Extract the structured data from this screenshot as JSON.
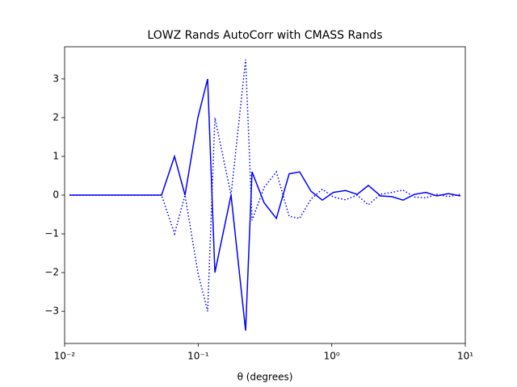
{
  "chart_data": {
    "type": "line",
    "title": "LOWZ Rands AutoCorr with CMASS Rands",
    "xlabel": "θ (degrees)",
    "xscale": "log",
    "xlim": [
      0.01,
      10
    ],
    "ylim": [
      -3.83,
      3.83
    ],
    "xticks": [
      {
        "value": 0.01,
        "label": "10⁻²"
      },
      {
        "value": 0.1,
        "label": "10⁻¹"
      },
      {
        "value": 1,
        "label": "10⁰"
      },
      {
        "value": 10,
        "label": "10¹"
      }
    ],
    "yticks": [
      {
        "value": -3,
        "label": "−3"
      },
      {
        "value": -2,
        "label": "−2"
      },
      {
        "value": -1,
        "label": "−1"
      },
      0,
      1,
      2,
      3
    ],
    "x": [
      0.01087,
      0.0132,
      0.0161,
      0.0195,
      0.024,
      0.0292,
      0.0355,
      0.0438,
      0.0532,
      0.0665,
      0.0797,
      0.0995,
      0.1177,
      0.1334,
      0.1762,
      0.2265,
      0.2531,
      0.312,
      0.385,
      0.48,
      0.575,
      0.7,
      0.85,
      1.03,
      1.27,
      1.55,
      1.88,
      2.32,
      2.82,
      3.42,
      4.16,
      5.06,
      6.14,
      7.46,
      9.21
    ],
    "series": [
      {
        "color": "#0000ff",
        "dash": "solid",
        "values": [
          0,
          0,
          0,
          0,
          0,
          0,
          0,
          0,
          0,
          1,
          0,
          2,
          3,
          -2,
          0,
          -3.5,
          0.6,
          -0.2,
          -0.6,
          0.55,
          0.6,
          0.1,
          -0.13,
          0.07,
          0.12,
          0.02,
          0.25,
          -0.02,
          -0.04,
          -0.13,
          0.02,
          0.07,
          -0.02,
          0.04,
          -0.02
        ]
      },
      {
        "color": "#0000ff",
        "dash": "dotted",
        "values": [
          0,
          0,
          0,
          0,
          0,
          0,
          0,
          0,
          0,
          -1,
          0,
          -2,
          -3,
          2,
          0,
          3.5,
          -0.65,
          0.2,
          0.6,
          -0.55,
          -0.6,
          -0.1,
          0.15,
          -0.05,
          -0.12,
          0,
          -0.25,
          0.02,
          0.07,
          0.13,
          -0.05,
          -0.07,
          0.02,
          -0.04,
          0.02
        ]
      }
    ]
  }
}
